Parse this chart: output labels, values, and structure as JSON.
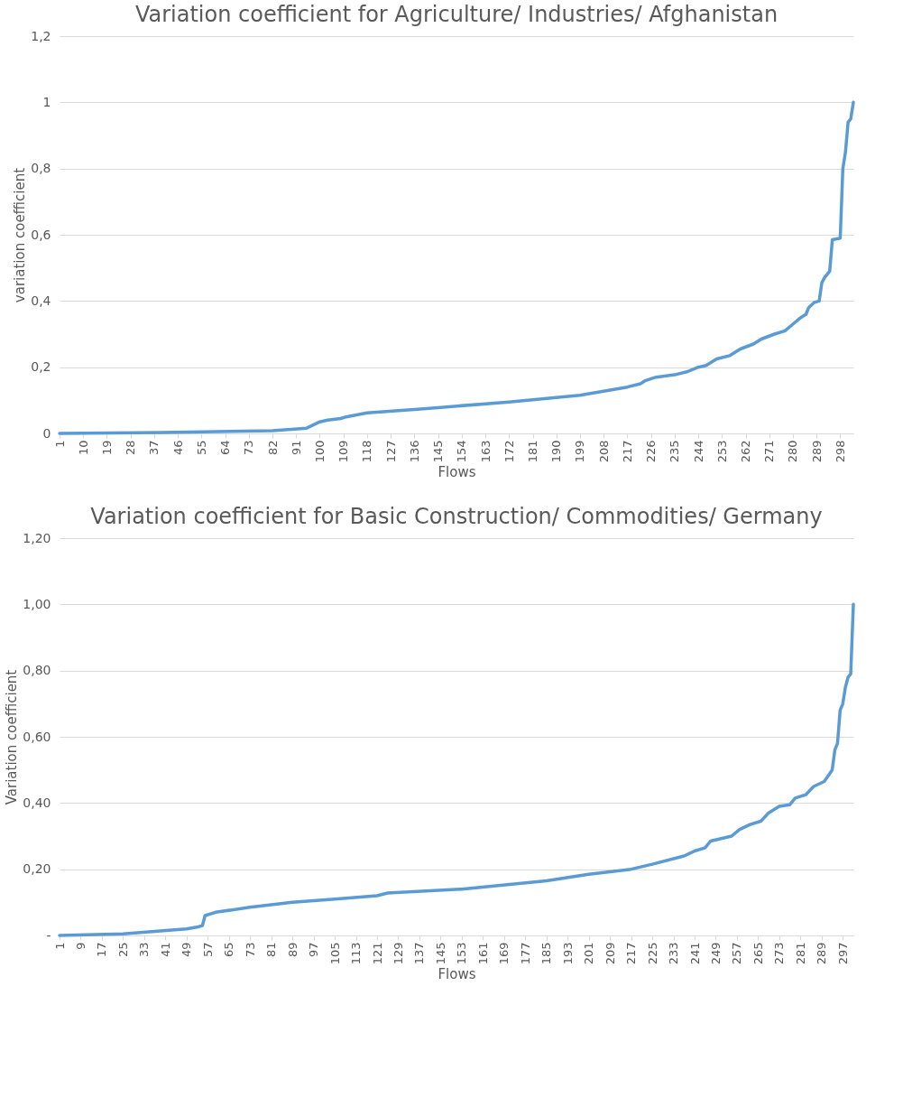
{
  "chart_data": [
    {
      "type": "line",
      "title": "Variation coefficient for Agriculture/ Industries/ Afghanistan",
      "xlabel": "Flows",
      "ylabel": "variation coefficient",
      "x": [
        1,
        40,
        82,
        95,
        100,
        103,
        108,
        110,
        118,
        136,
        145,
        172,
        199,
        217,
        222,
        224,
        228,
        235,
        240,
        244,
        247,
        251,
        256,
        260,
        265,
        268,
        273,
        277,
        280,
        283,
        285,
        286,
        288,
        290,
        291,
        292,
        294,
        295,
        298,
        299,
        300,
        301,
        302,
        303
      ],
      "series": [
        {
          "color": "#5b9bd5",
          "values": [
            0,
            0.003,
            0.008,
            0.016,
            0.035,
            0.04,
            0.045,
            0.05,
            0.062,
            0.072,
            0.078,
            0.095,
            0.115,
            0.14,
            0.15,
            0.16,
            0.17,
            0.177,
            0.187,
            0.2,
            0.205,
            0.225,
            0.235,
            0.255,
            0.27,
            0.285,
            0.3,
            0.31,
            0.33,
            0.35,
            0.36,
            0.38,
            0.395,
            0.4,
            0.455,
            0.47,
            0.49,
            0.585,
            0.59,
            0.8,
            0.85,
            0.94,
            0.95,
            1.0
          ]
        }
      ],
      "xlim": [
        1,
        303
      ],
      "xticks": [
        1,
        10,
        19,
        28,
        37,
        46,
        55,
        64,
        73,
        82,
        91,
        100,
        109,
        118,
        127,
        136,
        145,
        154,
        163,
        172,
        181,
        190,
        199,
        208,
        217,
        226,
        235,
        244,
        253,
        262,
        271,
        280,
        289,
        298
      ],
      "ylim": [
        0,
        1.2
      ],
      "yticks": [
        {
          "value": 0,
          "label": "0"
        },
        {
          "value": 0.2,
          "label": "0,2"
        },
        {
          "value": 0.4,
          "label": "0,4"
        },
        {
          "value": 0.6,
          "label": "0,6"
        },
        {
          "value": 0.8,
          "label": "0,8"
        },
        {
          "value": 1,
          "label": "1"
        },
        {
          "value": 1.2,
          "label": "1,2"
        }
      ],
      "grid": "y",
      "marker": "none",
      "line_style": "solid"
    },
    {
      "type": "line",
      "title": "Variation coefficient for Basic Construction/ Commodities/ Germany",
      "xlabel": "Flows",
      "ylabel": "Variation coefficient",
      "x": [
        1,
        25,
        49,
        53,
        55,
        56,
        60,
        73,
        89,
        105,
        121,
        125,
        153,
        185,
        201,
        217,
        225,
        237,
        241,
        245,
        247,
        255,
        258,
        262,
        266,
        269,
        273,
        277,
        279,
        283,
        286,
        290,
        293,
        294,
        295,
        296,
        297,
        298,
        299,
        300,
        301
      ],
      "series": [
        {
          "color": "#5b9bd5",
          "values": [
            0,
            0.005,
            0.02,
            0.025,
            0.03,
            0.06,
            0.07,
            0.085,
            0.1,
            0.11,
            0.12,
            0.128,
            0.14,
            0.165,
            0.185,
            0.2,
            0.215,
            0.24,
            0.255,
            0.265,
            0.285,
            0.3,
            0.32,
            0.335,
            0.345,
            0.37,
            0.39,
            0.395,
            0.415,
            0.425,
            0.45,
            0.465,
            0.5,
            0.56,
            0.58,
            0.68,
            0.7,
            0.75,
            0.78,
            0.79,
            1.0
          ]
        }
      ],
      "xlim": [
        1,
        301
      ],
      "xticks": [
        1,
        9,
        17,
        25,
        33,
        41,
        49,
        57,
        65,
        73,
        81,
        89,
        97,
        105,
        113,
        121,
        129,
        137,
        145,
        153,
        161,
        169,
        177,
        185,
        193,
        201,
        209,
        217,
        225,
        233,
        241,
        249,
        257,
        265,
        273,
        281,
        289,
        297
      ],
      "ylim": [
        0,
        1.2
      ],
      "yticks": [
        {
          "value": 0,
          "label": "-"
        },
        {
          "value": 0.2,
          "label": "0,20"
        },
        {
          "value": 0.4,
          "label": "0,40"
        },
        {
          "value": 0.6,
          "label": "0,60"
        },
        {
          "value": 0.8,
          "label": "0,80"
        },
        {
          "value": 1,
          "label": "1,00"
        },
        {
          "value": 1.2,
          "label": "1,20"
        }
      ],
      "grid": "y",
      "marker": "none",
      "line_style": "solid"
    }
  ]
}
